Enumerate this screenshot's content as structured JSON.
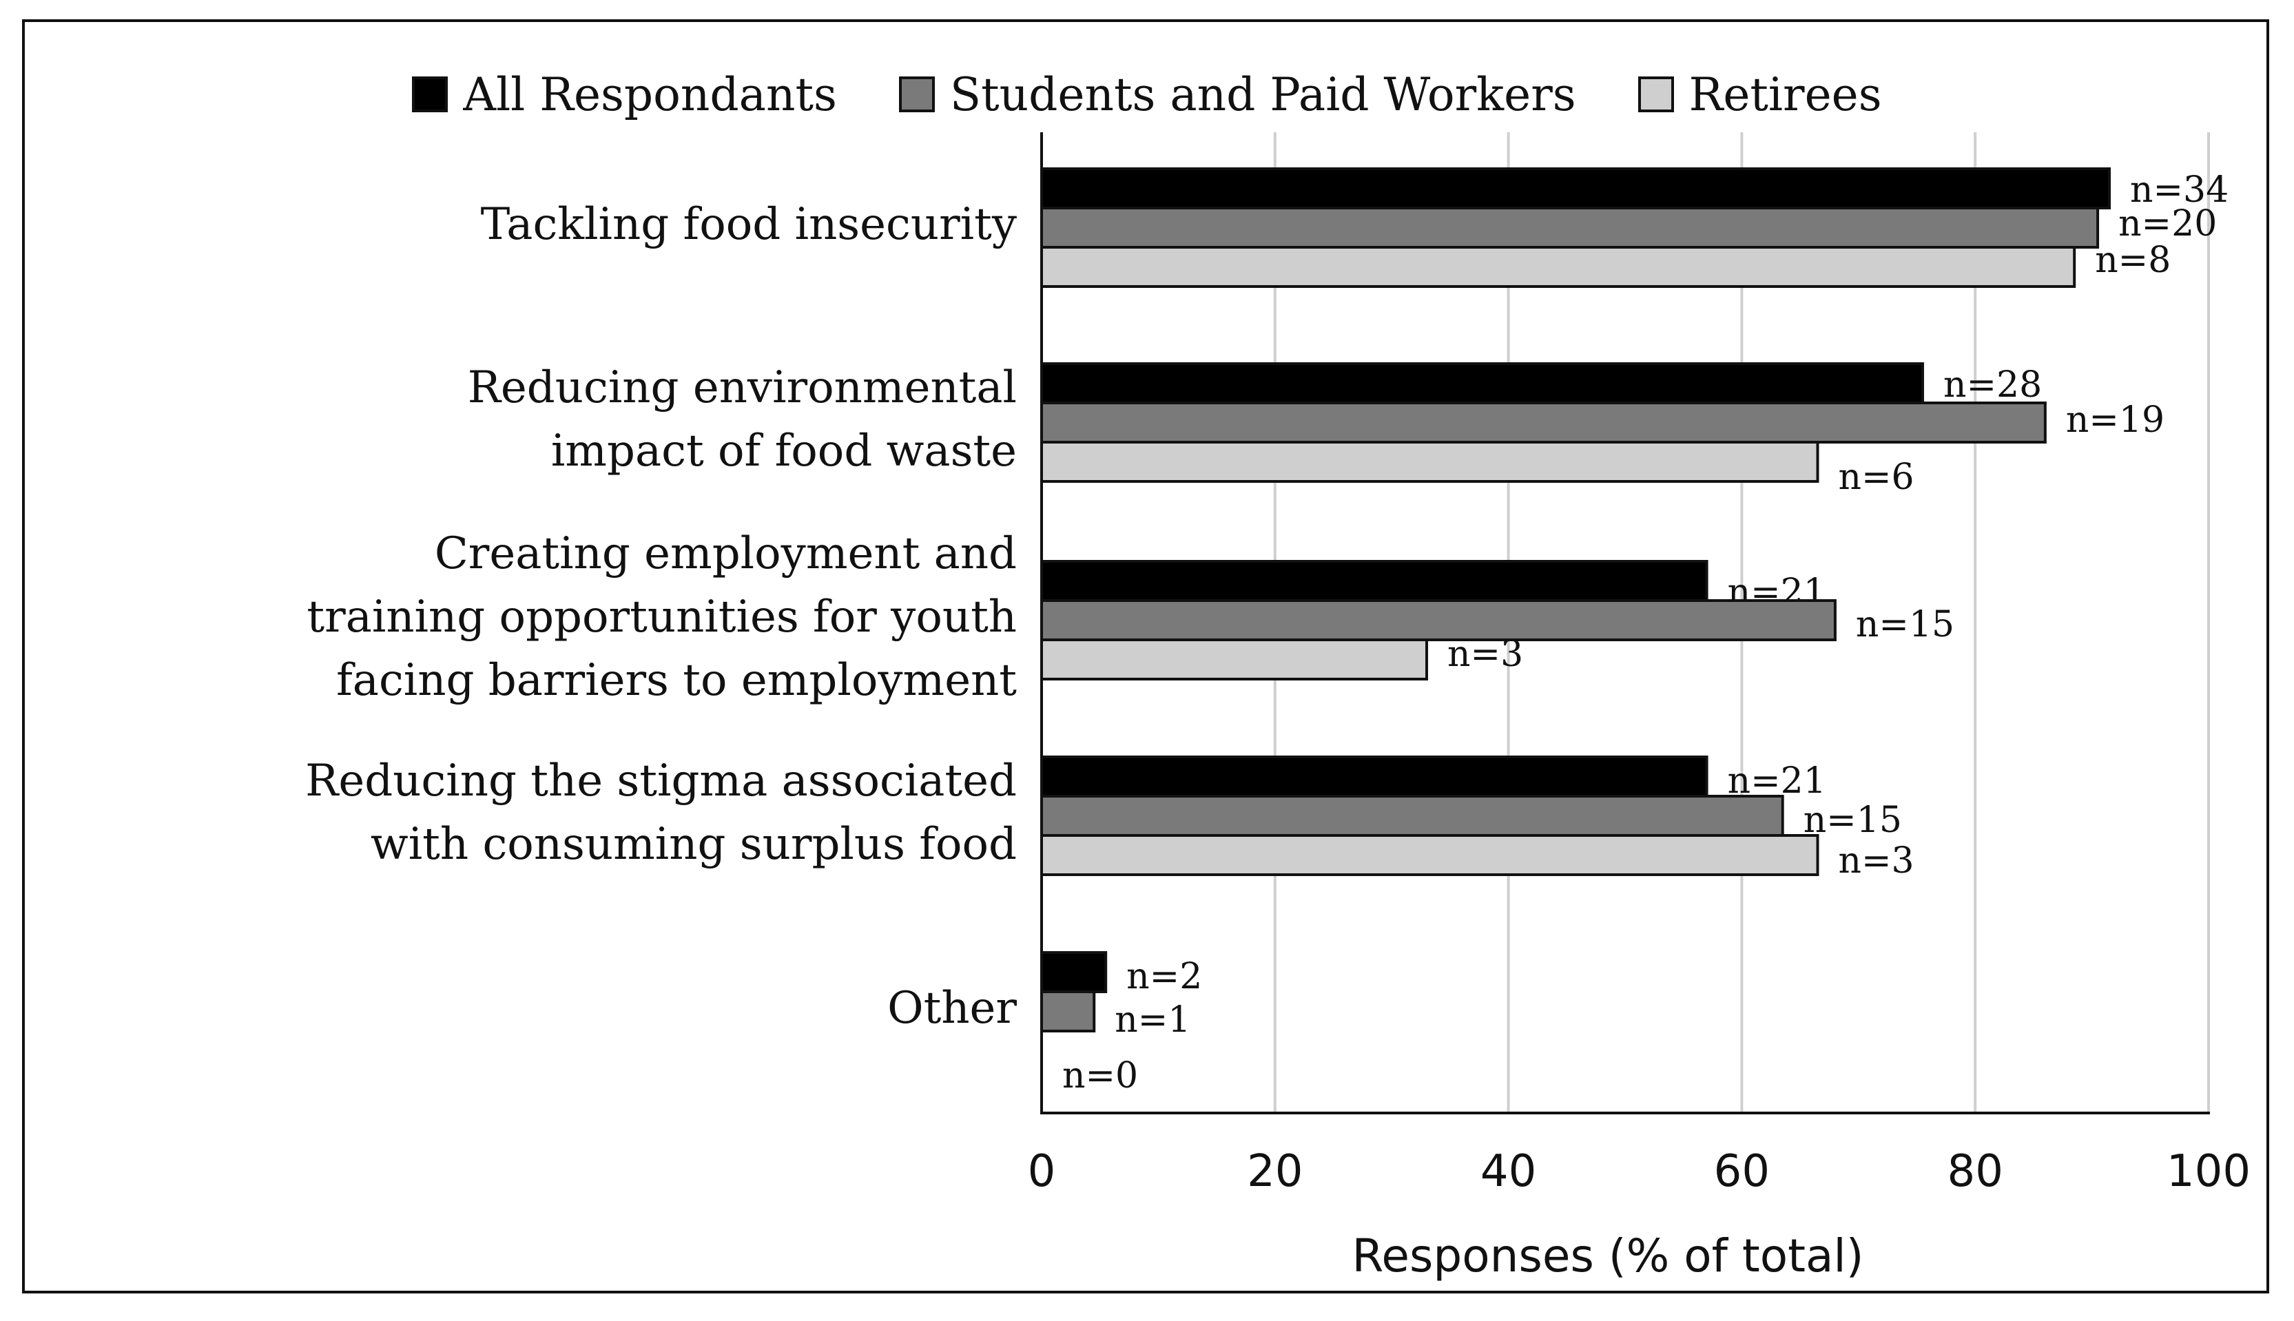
{
  "chart_data": {
    "type": "bar",
    "orientation": "horizontal",
    "title": "",
    "xlabel": "Responses (% of total)",
    "ylabel": "",
    "xlim": [
      0,
      100
    ],
    "xticks": [
      0,
      20,
      40,
      60,
      80,
      100
    ],
    "grid": "vertical",
    "legend_position": "top-center",
    "categories": [
      "Tackling food insecurity",
      "Reducing environmental impact of food waste",
      "Creating employment and training opportunities for youth facing barriers to employment",
      "Reducing the stigma associated with consuming surplus food",
      "Other"
    ],
    "category_lines": [
      [
        "Tackling food insecurity"
      ],
      [
        "Reducing environmental",
        "impact of food waste"
      ],
      [
        "Creating employment and",
        "training opportunities for youth",
        "facing barriers to employment"
      ],
      [
        "Reducing the stigma associated",
        "with consuming surplus food"
      ],
      [
        "Other"
      ]
    ],
    "series": [
      {
        "name": "All Respondants",
        "color": "#000000",
        "values": [
          91.5,
          75.5,
          57,
          57,
          5.5
        ],
        "labels": [
          "n=34",
          "n=28",
          "n=21",
          "n=21",
          "n=2"
        ]
      },
      {
        "name": "Students and Paid Workers",
        "color": "#7a7a7a",
        "values": [
          90.5,
          86,
          68,
          63.5,
          4.5
        ],
        "labels": [
          "n=20",
          "n=19",
          "n=15",
          "n=15",
          "n=1"
        ]
      },
      {
        "name": "Retirees",
        "color": "#cfcfcf",
        "values": [
          88.5,
          66.5,
          33,
          66.5,
          0
        ],
        "labels": [
          "n=8",
          "n=6",
          "n=3",
          "n=3",
          "n=0"
        ]
      }
    ]
  }
}
